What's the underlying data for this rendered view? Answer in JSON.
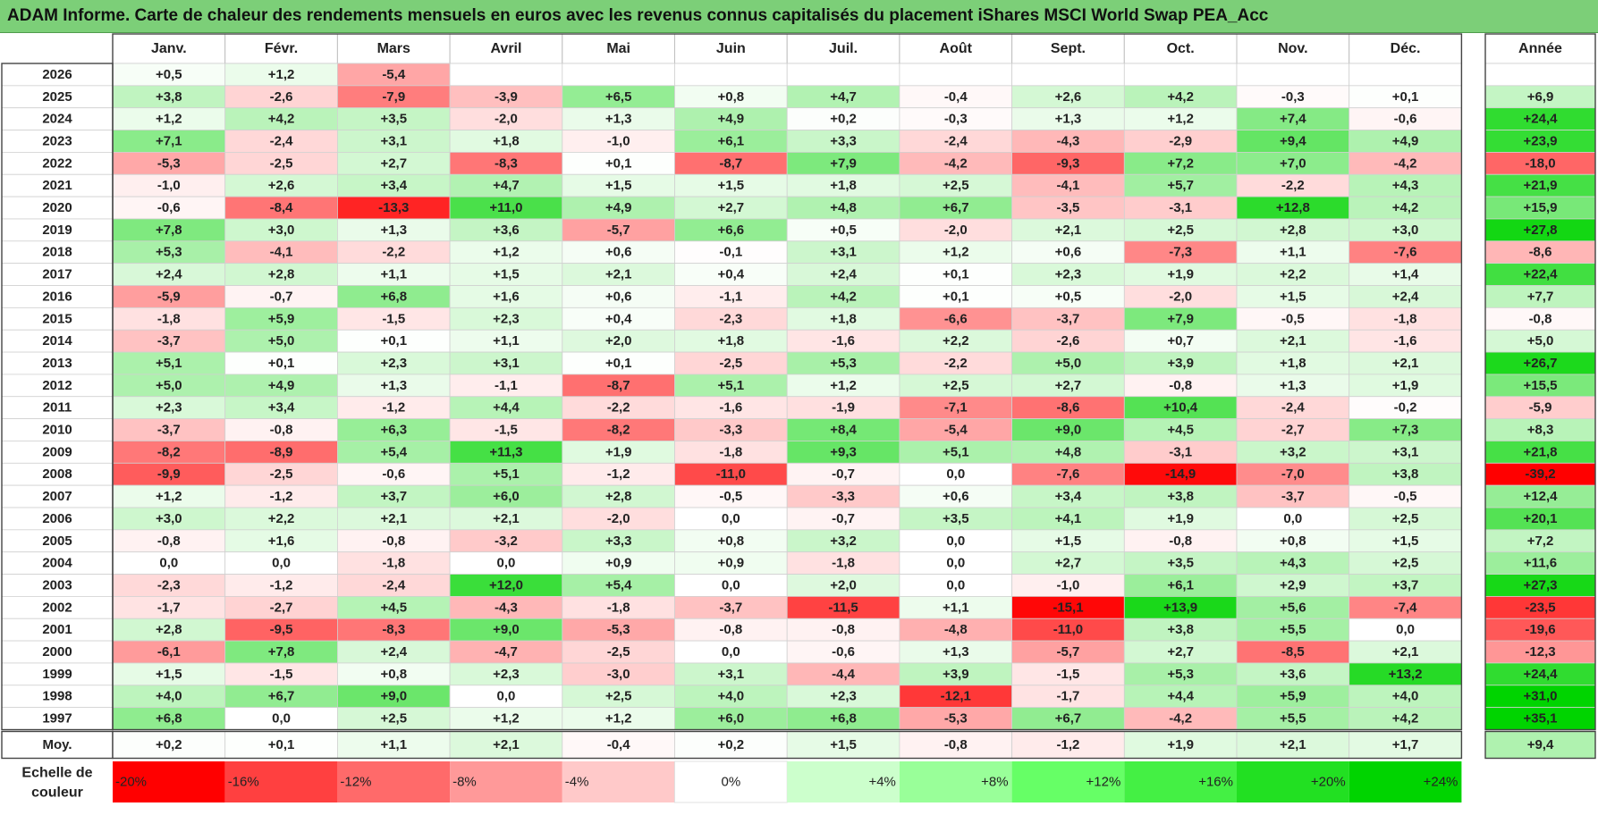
{
  "title": "ADAM Informe. Carte de chaleur des rendements mensuels en euros avec les revenus connus capitalisés du placement iShares MSCI World Swap PEA_Acc",
  "chart_data": {
    "type": "heatmap",
    "months": [
      "Janv.",
      "Févr.",
      "Mars",
      "Avril",
      "Mai",
      "Juin",
      "Juil.",
      "Août",
      "Sept.",
      "Oct.",
      "Nov.",
      "Déc."
    ],
    "year_header": "Année",
    "rows": [
      {
        "year": "2026",
        "values": [
          "+0,5",
          "+1,2",
          "-5,4",
          "",
          "",
          "",
          "",
          "",
          "",
          "",
          "",
          ""
        ],
        "annual": ""
      },
      {
        "year": "2025",
        "values": [
          "+3,8",
          "-2,6",
          "-7,9",
          "-3,9",
          "+6,5",
          "+0,8",
          "+4,7",
          "-0,4",
          "+2,6",
          "+4,2",
          "-0,3",
          "+0,1"
        ],
        "annual": "+6,9"
      },
      {
        "year": "2024",
        "values": [
          "+1,2",
          "+4,2",
          "+3,5",
          "-2,0",
          "+1,3",
          "+4,9",
          "+0,2",
          "-0,3",
          "+1,3",
          "+1,2",
          "+7,4",
          "-0,6"
        ],
        "annual": "+24,4"
      },
      {
        "year": "2023",
        "values": [
          "+7,1",
          "-2,4",
          "+3,1",
          "+1,8",
          "-1,0",
          "+6,1",
          "+3,3",
          "-2,4",
          "-4,3",
          "-2,9",
          "+9,4",
          "+4,9"
        ],
        "annual": "+23,9"
      },
      {
        "year": "2022",
        "values": [
          "-5,3",
          "-2,5",
          "+2,7",
          "-8,3",
          "+0,1",
          "-8,7",
          "+7,9",
          "-4,2",
          "-9,3",
          "+7,2",
          "+7,0",
          "-4,2"
        ],
        "annual": "-18,0"
      },
      {
        "year": "2021",
        "values": [
          "-1,0",
          "+2,6",
          "+3,4",
          "+4,7",
          "+1,5",
          "+1,5",
          "+1,8",
          "+2,5",
          "-4,1",
          "+5,7",
          "-2,2",
          "+4,3"
        ],
        "annual": "+21,9"
      },
      {
        "year": "2020",
        "values": [
          "-0,6",
          "-8,4",
          "-13,3",
          "+11,0",
          "+4,9",
          "+2,7",
          "+4,8",
          "+6,7",
          "-3,5",
          "-3,1",
          "+12,8",
          "+4,2"
        ],
        "annual": "+15,9"
      },
      {
        "year": "2019",
        "values": [
          "+7,8",
          "+3,0",
          "+1,3",
          "+3,6",
          "-5,7",
          "+6,6",
          "+0,5",
          "-2,0",
          "+2,1",
          "+2,5",
          "+2,8",
          "+3,0"
        ],
        "annual": "+27,8"
      },
      {
        "year": "2018",
        "values": [
          "+5,3",
          "-4,1",
          "-2,2",
          "+1,2",
          "+0,6",
          "-0,1",
          "+3,1",
          "+1,2",
          "+0,6",
          "-7,3",
          "+1,1",
          "-7,6"
        ],
        "annual": "-8,6"
      },
      {
        "year": "2017",
        "values": [
          "+2,4",
          "+2,8",
          "+1,1",
          "+1,5",
          "+2,1",
          "+0,4",
          "+2,4",
          "+0,1",
          "+2,3",
          "+1,9",
          "+2,2",
          "+1,4"
        ],
        "annual": "+22,4"
      },
      {
        "year": "2016",
        "values": [
          "-5,9",
          "-0,7",
          "+6,8",
          "+1,6",
          "+0,6",
          "-1,1",
          "+4,2",
          "+0,1",
          "+0,5",
          "-2,0",
          "+1,5",
          "+2,4"
        ],
        "annual": "+7,7"
      },
      {
        "year": "2015",
        "values": [
          "-1,8",
          "+5,9",
          "-1,5",
          "+2,3",
          "+0,4",
          "-2,3",
          "+1,8",
          "-6,6",
          "-3,7",
          "+7,9",
          "-0,5",
          "-1,8"
        ],
        "annual": "-0,8"
      },
      {
        "year": "2014",
        "values": [
          "-3,7",
          "+5,0",
          "+0,1",
          "+1,1",
          "+2,0",
          "+1,8",
          "-1,6",
          "+2,2",
          "-2,6",
          "+0,7",
          "+2,1",
          "-1,6"
        ],
        "annual": "+5,0"
      },
      {
        "year": "2013",
        "values": [
          "+5,1",
          "+0,1",
          "+2,3",
          "+3,1",
          "+0,1",
          "-2,5",
          "+5,3",
          "-2,2",
          "+5,0",
          "+3,9",
          "+1,8",
          "+2,1"
        ],
        "annual": "+26,7"
      },
      {
        "year": "2012",
        "values": [
          "+5,0",
          "+4,9",
          "+1,3",
          "-1,1",
          "-8,7",
          "+5,1",
          "+1,2",
          "+2,5",
          "+2,7",
          "-0,8",
          "+1,3",
          "+1,9"
        ],
        "annual": "+15,5"
      },
      {
        "year": "2011",
        "values": [
          "+2,3",
          "+3,4",
          "-1,2",
          "+4,4",
          "-2,2",
          "-1,6",
          "-1,9",
          "-7,1",
          "-8,6",
          "+10,4",
          "-2,4",
          "-0,2"
        ],
        "annual": "-5,9"
      },
      {
        "year": "2010",
        "values": [
          "-3,7",
          "-0,8",
          "+6,3",
          "-1,5",
          "-8,2",
          "-3,3",
          "+8,4",
          "-5,4",
          "+9,0",
          "+4,5",
          "-2,7",
          "+7,3"
        ],
        "annual": "+8,3"
      },
      {
        "year": "2009",
        "values": [
          "-8,2",
          "-8,9",
          "+5,4",
          "+11,3",
          "+1,9",
          "-1,8",
          "+9,3",
          "+5,1",
          "+4,8",
          "-3,1",
          "+3,2",
          "+3,1"
        ],
        "annual": "+21,8"
      },
      {
        "year": "2008",
        "values": [
          "-9,9",
          "-2,5",
          "-0,6",
          "+5,1",
          "-1,2",
          "-11,0",
          "-0,7",
          "0,0",
          "-7,6",
          "-14,9",
          "-7,0",
          "+3,8"
        ],
        "annual": "-39,2"
      },
      {
        "year": "2007",
        "values": [
          "+1,2",
          "-1,2",
          "+3,7",
          "+6,0",
          "+2,8",
          "-0,5",
          "-3,3",
          "+0,6",
          "+3,4",
          "+3,8",
          "-3,7",
          "-0,5"
        ],
        "annual": "+12,4"
      },
      {
        "year": "2006",
        "values": [
          "+3,0",
          "+2,2",
          "+2,1",
          "+2,1",
          "-2,0",
          "0,0",
          "-0,7",
          "+3,5",
          "+4,1",
          "+1,9",
          "0,0",
          "+2,5"
        ],
        "annual": "+20,1"
      },
      {
        "year": "2005",
        "values": [
          "-0,8",
          "+1,6",
          "-0,8",
          "-3,2",
          "+3,3",
          "+0,8",
          "+3,2",
          "0,0",
          "+1,5",
          "-0,8",
          "+0,8",
          "+1,5"
        ],
        "annual": "+7,2"
      },
      {
        "year": "2004",
        "values": [
          "0,0",
          "0,0",
          "-1,8",
          "0,0",
          "+0,9",
          "+0,9",
          "-1,8",
          "0,0",
          "+2,7",
          "+3,5",
          "+4,3",
          "+2,5"
        ],
        "annual": "+11,6"
      },
      {
        "year": "2003",
        "values": [
          "-2,3",
          "-1,2",
          "-2,4",
          "+12,0",
          "+5,4",
          "0,0",
          "+2,0",
          "0,0",
          "-1,0",
          "+6,1",
          "+2,9",
          "+3,7"
        ],
        "annual": "+27,3"
      },
      {
        "year": "2002",
        "values": [
          "-1,7",
          "-2,7",
          "+4,5",
          "-4,3",
          "-1,8",
          "-3,7",
          "-11,5",
          "+1,1",
          "-15,1",
          "+13,9",
          "+5,6",
          "-7,4"
        ],
        "annual": "-23,5"
      },
      {
        "year": "2001",
        "values": [
          "+2,8",
          "-9,5",
          "-8,3",
          "+9,0",
          "-5,3",
          "-0,8",
          "-0,8",
          "-4,8",
          "-11,0",
          "+3,8",
          "+5,5",
          "0,0"
        ],
        "annual": "-19,6"
      },
      {
        "year": "2000",
        "values": [
          "-6,1",
          "+7,8",
          "+2,4",
          "-4,7",
          "-2,5",
          "0,0",
          "-0,6",
          "+1,3",
          "-5,7",
          "+2,7",
          "-8,5",
          "+2,1"
        ],
        "annual": "-12,3"
      },
      {
        "year": "1999",
        "values": [
          "+1,5",
          "-1,5",
          "+0,8",
          "+2,3",
          "-3,0",
          "+3,1",
          "-4,4",
          "+3,9",
          "-1,5",
          "+5,3",
          "+3,6",
          "+13,2"
        ],
        "annual": "+24,4"
      },
      {
        "year": "1998",
        "values": [
          "+4,0",
          "+6,7",
          "+9,0",
          "0,0",
          "+2,5",
          "+4,0",
          "+2,3",
          "-12,1",
          "-1,7",
          "+4,4",
          "+5,9",
          "+4,0"
        ],
        "annual": "+31,0"
      },
      {
        "year": "1997",
        "values": [
          "+6,8",
          "0,0",
          "+2,5",
          "+1,2",
          "+1,2",
          "+6,0",
          "+6,8",
          "-5,3",
          "+6,7",
          "-4,2",
          "+5,5",
          "+4,2"
        ],
        "annual": "+35,1"
      }
    ],
    "average": {
      "label": "Moy.",
      "values": [
        "+0,2",
        "+0,1",
        "+1,1",
        "+2,1",
        "-0,4",
        "+0,2",
        "+1,5",
        "-0,8",
        "-1,2",
        "+1,9",
        "+2,1",
        "+1,7"
      ],
      "annual": "+9,4"
    },
    "scale": {
      "label_line1": "Echelle de",
      "label_line2": "couleur",
      "steps": [
        {
          "label": "-20%",
          "value": -20,
          "color": "#ff0000"
        },
        {
          "label": "-16%",
          "value": -16,
          "color": "#ff4040"
        },
        {
          "label": "-12%",
          "value": -12,
          "color": "#ff6a6a"
        },
        {
          "label": "-8%",
          "value": -8,
          "color": "#ff9999"
        },
        {
          "label": "-4%",
          "value": -4,
          "color": "#ffc9c9"
        },
        {
          "label": "0%",
          "value": 0,
          "color": "#ffffff"
        },
        {
          "label": "+4%",
          "value": 4,
          "color": "#ccffcc"
        },
        {
          "label": "+8%",
          "value": 8,
          "color": "#99ff99"
        },
        {
          "label": "+12%",
          "value": 12,
          "color": "#66ff66"
        },
        {
          "label": "+16%",
          "value": 16,
          "color": "#44f044"
        },
        {
          "label": "+20%",
          "value": 20,
          "color": "#22e022"
        },
        {
          "label": "+24%",
          "value": 24,
          "color": "#00d400"
        }
      ]
    },
    "colors": {
      "title_bar": "#7ccf78",
      "negative_max": "#ff0000",
      "positive_max": "#00d400",
      "neutral": "#ffffff"
    }
  }
}
